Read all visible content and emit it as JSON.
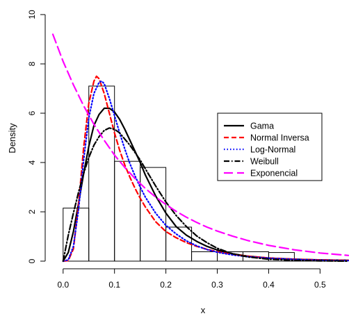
{
  "chart_data": {
    "type": "histogram+line",
    "title": "",
    "xlabel": "x",
    "ylabel": "Density",
    "xlim": [
      -0.02,
      0.555
    ],
    "ylim": [
      0,
      10
    ],
    "x_ticks": [
      0.0,
      0.1,
      0.2,
      0.3,
      0.4,
      0.5
    ],
    "x_tick_labels": [
      "0.0",
      "0.1",
      "0.2",
      "0.3",
      "0.4",
      "0.5"
    ],
    "y_ticks": [
      0,
      2,
      4,
      6,
      8,
      10
    ],
    "y_tick_labels": [
      "0",
      "2",
      "4",
      "6",
      "8",
      "10"
    ],
    "grid": false,
    "legend_position": "right-middle",
    "histogram": {
      "bin_width": 0.05,
      "bin_starts": [
        0.0,
        0.05,
        0.1,
        0.15,
        0.2,
        0.25,
        0.3,
        0.35,
        0.4,
        0.45,
        0.5
      ],
      "densities": [
        2.15,
        7.1,
        4.05,
        3.8,
        1.38,
        0.38,
        0.38,
        0.38,
        0.35,
        0.05,
        0.05
      ]
    },
    "series": [
      {
        "name": "Gama",
        "color": "#000000",
        "dash": "solid",
        "x": [
          0.0,
          0.01,
          0.02,
          0.03,
          0.04,
          0.05,
          0.06,
          0.07,
          0.08,
          0.09,
          0.1,
          0.11,
          0.12,
          0.13,
          0.14,
          0.15,
          0.16,
          0.18,
          0.2,
          0.22,
          0.24,
          0.26,
          0.28,
          0.3,
          0.33,
          0.36,
          0.4,
          0.45,
          0.5,
          0.555
        ],
        "y": [
          0.0,
          0.35,
          1.2,
          2.35,
          3.55,
          4.65,
          5.5,
          5.95,
          6.2,
          6.2,
          6.05,
          5.75,
          5.35,
          4.9,
          4.45,
          4.0,
          3.5,
          2.65,
          1.95,
          1.4,
          1.05,
          0.8,
          0.6,
          0.45,
          0.3,
          0.2,
          0.12,
          0.08,
          0.05,
          0.03
        ]
      },
      {
        "name": "Normal Inversa",
        "color": "#ff0000",
        "dash": "dashed",
        "x": [
          0.0,
          0.01,
          0.02,
          0.03,
          0.04,
          0.05,
          0.06,
          0.065,
          0.07,
          0.08,
          0.09,
          0.1,
          0.11,
          0.12,
          0.13,
          0.14,
          0.15,
          0.16,
          0.18,
          0.2,
          0.22,
          0.24,
          0.26,
          0.28,
          0.3,
          0.33,
          0.36,
          0.4,
          0.45,
          0.5,
          0.555
        ],
        "y": [
          0.0,
          0.02,
          0.5,
          2.3,
          4.6,
          6.4,
          7.3,
          7.5,
          7.4,
          6.8,
          6.0,
          5.2,
          4.5,
          3.9,
          3.4,
          2.95,
          2.55,
          2.2,
          1.6,
          1.2,
          0.95,
          0.75,
          0.6,
          0.48,
          0.38,
          0.27,
          0.2,
          0.13,
          0.08,
          0.05,
          0.03
        ]
      },
      {
        "name": "Log-Normal",
        "color": "#0000ff",
        "dash": "dotted",
        "x": [
          0.0,
          0.01,
          0.02,
          0.03,
          0.04,
          0.05,
          0.06,
          0.07,
          0.075,
          0.08,
          0.09,
          0.1,
          0.11,
          0.12,
          0.13,
          0.14,
          0.15,
          0.16,
          0.18,
          0.2,
          0.22,
          0.24,
          0.26,
          0.28,
          0.3,
          0.33,
          0.36,
          0.4,
          0.45,
          0.5,
          0.555
        ],
        "y": [
          0.0,
          0.05,
          0.6,
          2.1,
          4.1,
          5.8,
          6.8,
          7.25,
          7.3,
          7.2,
          6.6,
          5.9,
          5.2,
          4.55,
          3.95,
          3.45,
          3.0,
          2.6,
          1.95,
          1.45,
          1.1,
          0.82,
          0.62,
          0.47,
          0.36,
          0.25,
          0.18,
          0.12,
          0.07,
          0.04,
          0.02
        ]
      },
      {
        "name": "Weibull",
        "color": "#000000",
        "dash": "dashdot",
        "x": [
          0.0,
          0.01,
          0.02,
          0.03,
          0.04,
          0.05,
          0.06,
          0.07,
          0.08,
          0.09,
          0.1,
          0.11,
          0.12,
          0.13,
          0.14,
          0.15,
          0.16,
          0.18,
          0.2,
          0.22,
          0.24,
          0.26,
          0.28,
          0.3,
          0.33,
          0.36,
          0.4,
          0.45,
          0.5,
          0.555
        ],
        "y": [
          0.0,
          1.05,
          1.95,
          2.8,
          3.55,
          4.2,
          4.7,
          5.05,
          5.3,
          5.4,
          5.35,
          5.2,
          4.95,
          4.7,
          4.4,
          4.1,
          3.75,
          3.05,
          2.4,
          1.85,
          1.4,
          1.02,
          0.75,
          0.52,
          0.3,
          0.17,
          0.08,
          0.03,
          0.01,
          0.0
        ]
      },
      {
        "name": "Exponencial",
        "color": "#ff00ff",
        "dash": "longdash",
        "x": [
          -0.02,
          0.0,
          0.02,
          0.04,
          0.06,
          0.08,
          0.1,
          0.12,
          0.14,
          0.16,
          0.18,
          0.2,
          0.22,
          0.24,
          0.26,
          0.28,
          0.3,
          0.33,
          0.36,
          0.4,
          0.45,
          0.5,
          0.555
        ],
        "y": [
          9.2,
          8.1,
          7.15,
          6.3,
          5.55,
          4.9,
          4.3,
          3.8,
          3.35,
          2.95,
          2.6,
          2.3,
          2.02,
          1.78,
          1.57,
          1.38,
          1.22,
          1.01,
          0.83,
          0.64,
          0.46,
          0.33,
          0.23
        ]
      }
    ]
  }
}
